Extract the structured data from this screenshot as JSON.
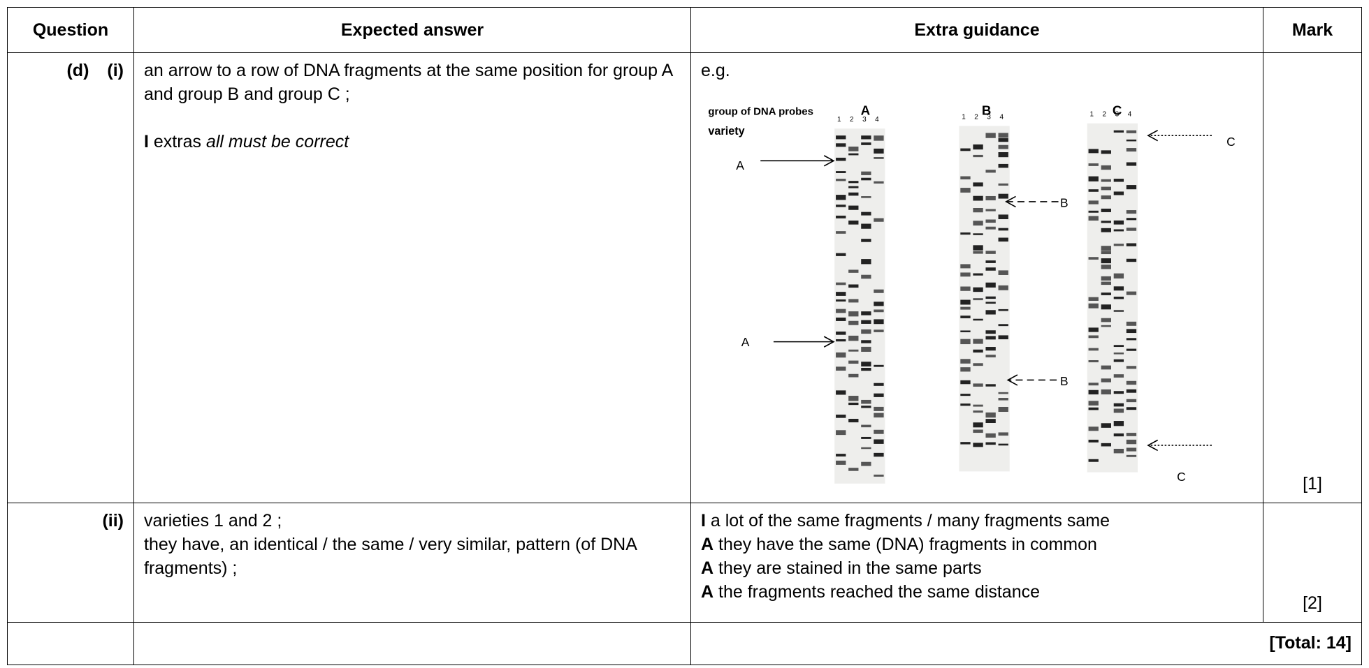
{
  "header": {
    "question": "Question",
    "expected": "Expected answer",
    "guidance": "Extra guidance",
    "mark": "Mark"
  },
  "rows": [
    {
      "part": "(d)",
      "subpart": "(i)",
      "answer": "an arrow to a row of DNA fragments at the same position for group A and group B and group C ;",
      "answer_note": {
        "prefix": "I",
        "text": "extras",
        "emphasis": "all must be correct"
      },
      "guidance_intro": "e.g.",
      "figure": {
        "probe_label": "group of DNA probes",
        "variety_label": "variety",
        "groups": [
          "A",
          "B",
          "C"
        ],
        "lanes": [
          "1",
          "2",
          "3",
          "4"
        ],
        "arrows": [
          "A",
          "A",
          "B",
          "B",
          "C",
          "C"
        ]
      },
      "mark": "[1]"
    },
    {
      "subpart": "(ii)",
      "answer_lines": [
        "varieties 1 and 2 ;",
        "they have, an identical / the same / very similar, pattern (of DNA fragments) ;"
      ],
      "guidance_lines": [
        {
          "prefix": "I",
          "text": "a lot of the same fragments / many fragments same"
        },
        {
          "prefix": "A",
          "text": "they have the same (DNA) fragments in common"
        },
        {
          "prefix": "A",
          "text": "they are stained in the same parts"
        },
        {
          "prefix": "A",
          "text": "the fragments reached the same distance"
        }
      ],
      "mark": "[2]"
    }
  ],
  "total": "[Total: 14]"
}
